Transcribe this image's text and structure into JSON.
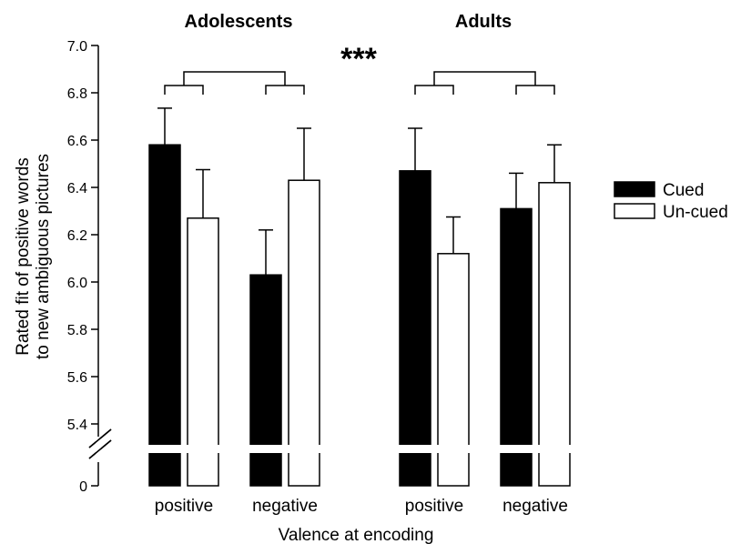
{
  "chart_data": {
    "type": "bar",
    "xlabel": "Valence at encoding",
    "ylabel": [
      "Rated fit of positive words",
      "to new ambiguous pictures"
    ],
    "ylim": [
      5.3,
      7.0
    ],
    "broken_axis": true,
    "yticks": [
      "5.4",
      "5.6",
      "5.8",
      "6.0",
      "6.2",
      "6.4",
      "6.6",
      "6.8",
      "7.0"
    ],
    "y_zero_label": "0",
    "significance": "***",
    "legend": {
      "position": "right",
      "items": [
        {
          "label": "Cued",
          "color": "#000000"
        },
        {
          "label": "Un-cued",
          "color": "#ffffff"
        }
      ]
    },
    "groups": [
      {
        "title": "Adolescents",
        "categories": [
          "positive",
          "negative"
        ],
        "series": [
          {
            "name": "Cued",
            "values": [
              6.58,
              6.03
            ],
            "errors": [
              0.155,
              0.19
            ]
          },
          {
            "name": "Un-cued",
            "values": [
              6.27,
              6.43
            ],
            "errors": [
              0.205,
              0.22
            ]
          }
        ]
      },
      {
        "title": "Adults",
        "categories": [
          "positive",
          "negative"
        ],
        "series": [
          {
            "name": "Cued",
            "values": [
              6.47,
              6.31
            ],
            "errors": [
              0.18,
              0.15
            ]
          },
          {
            "name": "Un-cued",
            "values": [
              6.12,
              6.42
            ],
            "errors": [
              0.155,
              0.16
            ]
          }
        ]
      }
    ]
  }
}
